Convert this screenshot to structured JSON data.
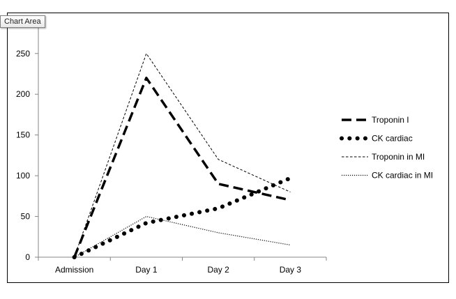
{
  "tooltip": {
    "label": "Chart Area"
  },
  "chart_data": {
    "type": "line",
    "categories": [
      "Admission",
      "Day 1",
      "Day 2",
      "Day 3"
    ],
    "ylim": [
      0,
      290
    ],
    "yticks": [
      0,
      50,
      100,
      150,
      200,
      250
    ],
    "grid": false,
    "legend_position": "right",
    "title": "",
    "xlabel": "",
    "ylabel": "",
    "series": [
      {
        "name": "Troponin I",
        "values": [
          0,
          220,
          90,
          70
        ],
        "style": "long-dash",
        "color": "#000000"
      },
      {
        "name": "CK cardiac",
        "values": [
          0,
          42,
          60,
          97
        ],
        "style": "round-dot",
        "color": "#000000"
      },
      {
        "name": "Troponin in MI",
        "values": [
          0,
          250,
          120,
          80
        ],
        "style": "dash",
        "color": "#000000"
      },
      {
        "name": "CK cardiac in MI",
        "values": [
          0,
          50,
          30,
          15
        ],
        "style": "dot",
        "color": "#000000"
      }
    ]
  }
}
